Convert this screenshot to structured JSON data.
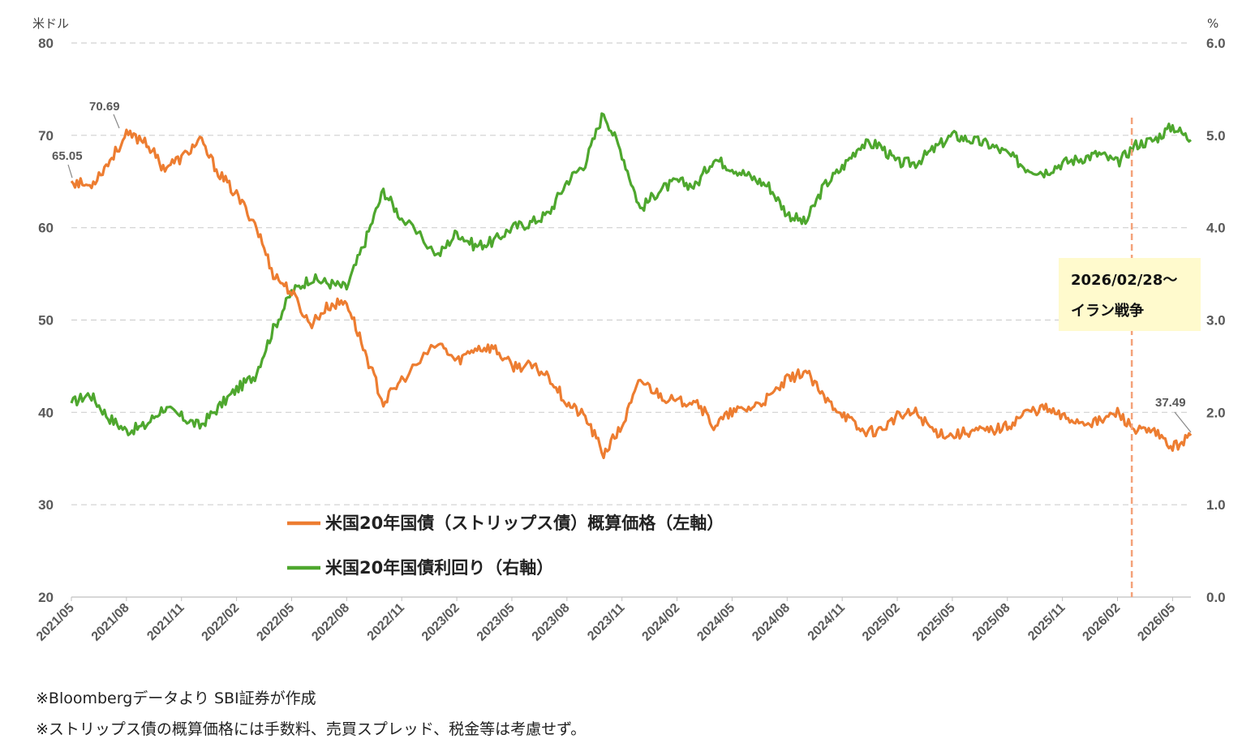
{
  "chart_data": {
    "type": "line",
    "left_axis_unit": "米ドル",
    "right_axis_unit": "%",
    "left_axis": {
      "min": 20,
      "max": 80,
      "ticks": [
        20,
        30,
        40,
        50,
        60,
        70,
        80
      ]
    },
    "right_axis": {
      "min": 0,
      "max": 6,
      "ticks": [
        "0.0",
        "1.0",
        "2.0",
        "3.0",
        "4.0",
        "5.0",
        "6.0"
      ]
    },
    "x_range": [
      "2021/05",
      "2026/06"
    ],
    "x_ticks": [
      "2021/05",
      "2021/08",
      "2021/11",
      "2022/02",
      "2022/05",
      "2022/08",
      "2022/11",
      "2023/02",
      "2023/05",
      "2023/08",
      "2023/11",
      "2024/02",
      "2024/05",
      "2024/08",
      "2024/11",
      "2025/02",
      "2025/05",
      "2025/08",
      "2025/11",
      "2026/02",
      "2026/05"
    ],
    "grid": true,
    "series": [
      {
        "name": "米国20年国債（ストリップス債）概算価格（左軸）",
        "axis": "left",
        "color": "#ED7D31",
        "points": [
          [
            "2021/05",
            65.05
          ],
          [
            "2021/06",
            64.5
          ],
          [
            "2021/07",
            67.0
          ],
          [
            "2021/08",
            70.0
          ],
          [
            "2021/09",
            69.5
          ],
          [
            "2021/10",
            66.5
          ],
          [
            "2021/11",
            67.5
          ],
          [
            "2021/12",
            69.5
          ],
          [
            "2022/01",
            66.0
          ],
          [
            "2022/02",
            63.5
          ],
          [
            "2022/03",
            60.5
          ],
          [
            "2022/04",
            55.0
          ],
          [
            "2022/05",
            53.0
          ],
          [
            "2022/06",
            49.5
          ],
          [
            "2022/07",
            51.5
          ],
          [
            "2022/08",
            52.0
          ],
          [
            "2022/09",
            46.5
          ],
          [
            "2022/10",
            41.0
          ],
          [
            "2022/11",
            43.5
          ],
          [
            "2023/01",
            47.5
          ],
          [
            "2023/02",
            45.5
          ],
          [
            "2023/03",
            47.0
          ],
          [
            "2023/04",
            47.0
          ],
          [
            "2023/05",
            45.0
          ],
          [
            "2023/06",
            45.0
          ],
          [
            "2023/07",
            44.0
          ],
          [
            "2023/08",
            41.0
          ],
          [
            "2023/09",
            39.5
          ],
          [
            "2023/10",
            35.5
          ],
          [
            "2023/11",
            38.5
          ],
          [
            "2023/12",
            43.5
          ],
          [
            "2024/01",
            42.0
          ],
          [
            "2024/02",
            41.0
          ],
          [
            "2024/03",
            41.5
          ],
          [
            "2024/04",
            38.5
          ],
          [
            "2024/05",
            40.0
          ],
          [
            "2024/06",
            40.5
          ],
          [
            "2024/07",
            41.5
          ],
          [
            "2024/08",
            43.5
          ],
          [
            "2024/09",
            44.5
          ],
          [
            "2024/10",
            41.5
          ],
          [
            "2024/11",
            40.0
          ],
          [
            "2024/12",
            38.0
          ],
          [
            "2025/01",
            38.0
          ],
          [
            "2025/02",
            39.5
          ],
          [
            "2025/03",
            40.0
          ],
          [
            "2025/04",
            38.0
          ],
          [
            "2025/05",
            37.5
          ],
          [
            "2025/06",
            38.0
          ],
          [
            "2025/07",
            38.0
          ],
          [
            "2025/08",
            38.5
          ],
          [
            "2025/09",
            40.0
          ],
          [
            "2025/10",
            40.5
          ],
          [
            "2025/11",
            39.5
          ],
          [
            "2025/12",
            39.0
          ],
          [
            "2026/01",
            39.0
          ],
          [
            "2026/02",
            40.0
          ],
          [
            "2026/03",
            38.0
          ],
          [
            "2026/04",
            37.8
          ],
          [
            "2026/05",
            36.2
          ],
          [
            "2026/06",
            37.49
          ]
        ]
      },
      {
        "name": "米国20年国債利回り（右軸）",
        "axis": "right",
        "color": "#4EA72E",
        "points": [
          [
            "2021/05",
            2.1
          ],
          [
            "2021/06",
            2.2
          ],
          [
            "2021/07",
            1.95
          ],
          [
            "2021/08",
            1.8
          ],
          [
            "2021/09",
            1.85
          ],
          [
            "2021/10",
            2.05
          ],
          [
            "2021/11",
            1.95
          ],
          [
            "2021/12",
            1.85
          ],
          [
            "2022/01",
            2.05
          ],
          [
            "2022/02",
            2.25
          ],
          [
            "2022/03",
            2.4
          ],
          [
            "2022/04",
            2.9
          ],
          [
            "2022/05",
            3.3
          ],
          [
            "2022/06",
            3.45
          ],
          [
            "2022/07",
            3.4
          ],
          [
            "2022/08",
            3.35
          ],
          [
            "2022/09",
            3.85
          ],
          [
            "2022/10",
            4.4
          ],
          [
            "2022/11",
            4.1
          ],
          [
            "2023/01",
            3.7
          ],
          [
            "2023/02",
            3.95
          ],
          [
            "2023/03",
            3.8
          ],
          [
            "2023/04",
            3.85
          ],
          [
            "2023/05",
            4.0
          ],
          [
            "2023/06",
            4.05
          ],
          [
            "2023/07",
            4.15
          ],
          [
            "2023/08",
            4.5
          ],
          [
            "2023/09",
            4.7
          ],
          [
            "2023/10",
            5.25
          ],
          [
            "2023/11",
            4.8
          ],
          [
            "2023/12",
            4.2
          ],
          [
            "2024/01",
            4.4
          ],
          [
            "2024/02",
            4.5
          ],
          [
            "2024/03",
            4.45
          ],
          [
            "2024/04",
            4.75
          ],
          [
            "2024/05",
            4.65
          ],
          [
            "2024/06",
            4.55
          ],
          [
            "2024/07",
            4.45
          ],
          [
            "2024/08",
            4.15
          ],
          [
            "2024/09",
            4.05
          ],
          [
            "2024/10",
            4.45
          ],
          [
            "2024/11",
            4.65
          ],
          [
            "2024/12",
            4.9
          ],
          [
            "2025/01",
            4.9
          ],
          [
            "2025/02",
            4.7
          ],
          [
            "2025/03",
            4.7
          ],
          [
            "2025/04",
            4.85
          ],
          [
            "2025/05",
            5.0
          ],
          [
            "2025/06",
            4.95
          ],
          [
            "2025/07",
            4.9
          ],
          [
            "2025/08",
            4.8
          ],
          [
            "2025/09",
            4.65
          ],
          [
            "2025/10",
            4.6
          ],
          [
            "2025/11",
            4.7
          ],
          [
            "2025/12",
            4.75
          ],
          [
            "2026/01",
            4.8
          ],
          [
            "2026/02",
            4.7
          ],
          [
            "2026/03",
            4.9
          ],
          [
            "2026/04",
            4.95
          ],
          [
            "2026/05",
            5.1
          ],
          [
            "2026/06",
            4.95
          ]
        ]
      }
    ],
    "annotations": [
      "65.05",
      "70.69",
      "37.49"
    ],
    "event": {
      "date": "2026/03",
      "line1": "2026/02/28～",
      "line2": "イラン戦争"
    }
  },
  "notes": [
    "※Bloombergデータより SBI証券が作成",
    "※ストリップス債の概算価格には手数料、売買スプレッド、税金等は考慮せず。"
  ]
}
